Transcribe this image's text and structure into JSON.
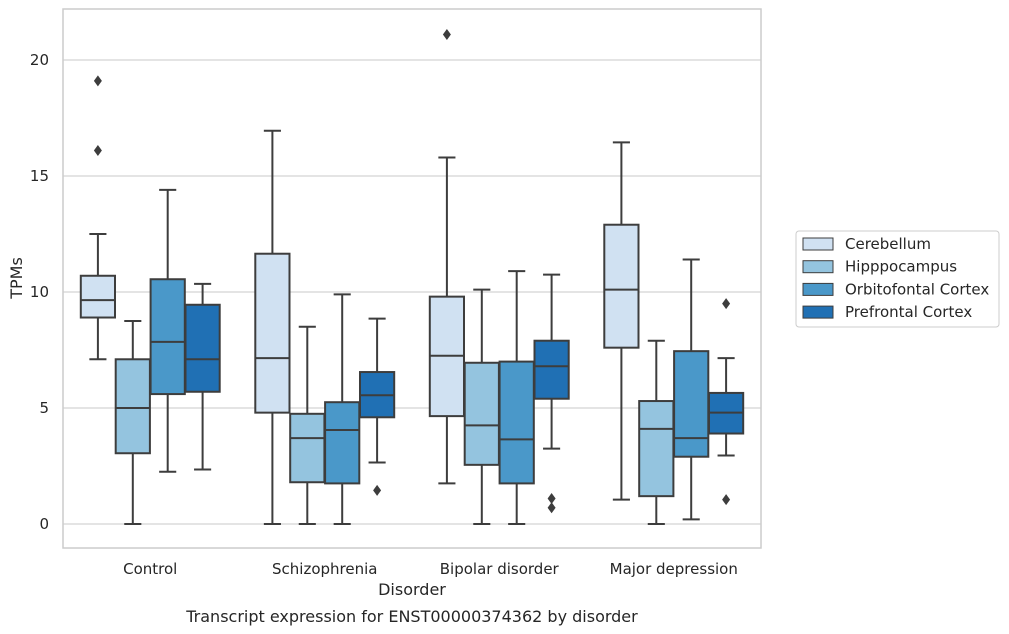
{
  "chart_data": {
    "type": "box",
    "title": "",
    "caption": "Transcript expression for ENST00000374362 by disorder",
    "xlabel": "Disorder",
    "ylabel": "TPMs",
    "ylim": [
      -1,
      22.2
    ],
    "yticks": [
      0,
      5,
      10,
      15,
      20
    ],
    "grid": "horizontal",
    "legend_position": "right",
    "categories": [
      "Control",
      "Schizophrenia",
      "Bipolar disorder",
      "Major depression"
    ],
    "series": [
      {
        "name": "Cerebellum",
        "color": "#d0e1f2",
        "boxes": [
          {
            "whisker_low": 7.1,
            "q1": 8.9,
            "median": 9.65,
            "q3": 10.7,
            "whisker_high": 12.5,
            "outliers": [
              16.1,
              19.1
            ]
          },
          {
            "whisker_low": 0.0,
            "q1": 4.8,
            "median": 7.15,
            "q3": 11.65,
            "whisker_high": 16.95,
            "outliers": []
          },
          {
            "whisker_low": 1.75,
            "q1": 4.65,
            "median": 7.25,
            "q3": 9.8,
            "whisker_high": 15.8,
            "outliers": [
              21.1
            ]
          },
          {
            "whisker_low": 1.05,
            "q1": 7.6,
            "median": 10.1,
            "q3": 12.9,
            "whisker_high": 16.45,
            "outliers": []
          }
        ]
      },
      {
        "name": "Hipppocampus",
        "color": "#94c4df",
        "boxes": [
          {
            "whisker_low": 0.0,
            "q1": 3.05,
            "median": 5.0,
            "q3": 7.1,
            "whisker_high": 8.75,
            "outliers": []
          },
          {
            "whisker_low": 0.0,
            "q1": 1.8,
            "median": 3.7,
            "q3": 4.75,
            "whisker_high": 8.5,
            "outliers": []
          },
          {
            "whisker_low": 0.0,
            "q1": 2.55,
            "median": 4.25,
            "q3": 6.95,
            "whisker_high": 10.1,
            "outliers": []
          },
          {
            "whisker_low": 0.0,
            "q1": 1.2,
            "median": 4.1,
            "q3": 5.3,
            "whisker_high": 7.9,
            "outliers": []
          }
        ]
      },
      {
        "name": "Orbitofontal Cortex",
        "color": "#4a98c9",
        "boxes": [
          {
            "whisker_low": 2.25,
            "q1": 5.6,
            "median": 7.85,
            "q3": 10.55,
            "whisker_high": 14.4,
            "outliers": []
          },
          {
            "whisker_low": 0.0,
            "q1": 1.75,
            "median": 4.05,
            "q3": 5.25,
            "whisker_high": 9.9,
            "outliers": []
          },
          {
            "whisker_low": 0.0,
            "q1": 1.75,
            "median": 3.65,
            "q3": 7.0,
            "whisker_high": 10.9,
            "outliers": []
          },
          {
            "whisker_low": 0.2,
            "q1": 2.9,
            "median": 3.7,
            "q3": 7.45,
            "whisker_high": 11.4,
            "outliers": []
          }
        ]
      },
      {
        "name": "Prefrontal Cortex",
        "color": "#2070b4",
        "boxes": [
          {
            "whisker_low": 2.35,
            "q1": 5.7,
            "median": 7.1,
            "q3": 9.45,
            "whisker_high": 10.35,
            "outliers": []
          },
          {
            "whisker_low": 2.65,
            "q1": 4.6,
            "median": 5.55,
            "q3": 6.55,
            "whisker_high": 8.85,
            "outliers": [
              1.45
            ]
          },
          {
            "whisker_low": 3.25,
            "q1": 5.4,
            "median": 6.8,
            "q3": 7.9,
            "whisker_high": 10.75,
            "outliers": [
              0.7,
              1.1
            ]
          },
          {
            "whisker_low": 2.95,
            "q1": 3.9,
            "median": 4.8,
            "q3": 5.65,
            "whisker_high": 7.15,
            "outliers": [
              1.05,
              9.5
            ]
          }
        ]
      }
    ]
  }
}
